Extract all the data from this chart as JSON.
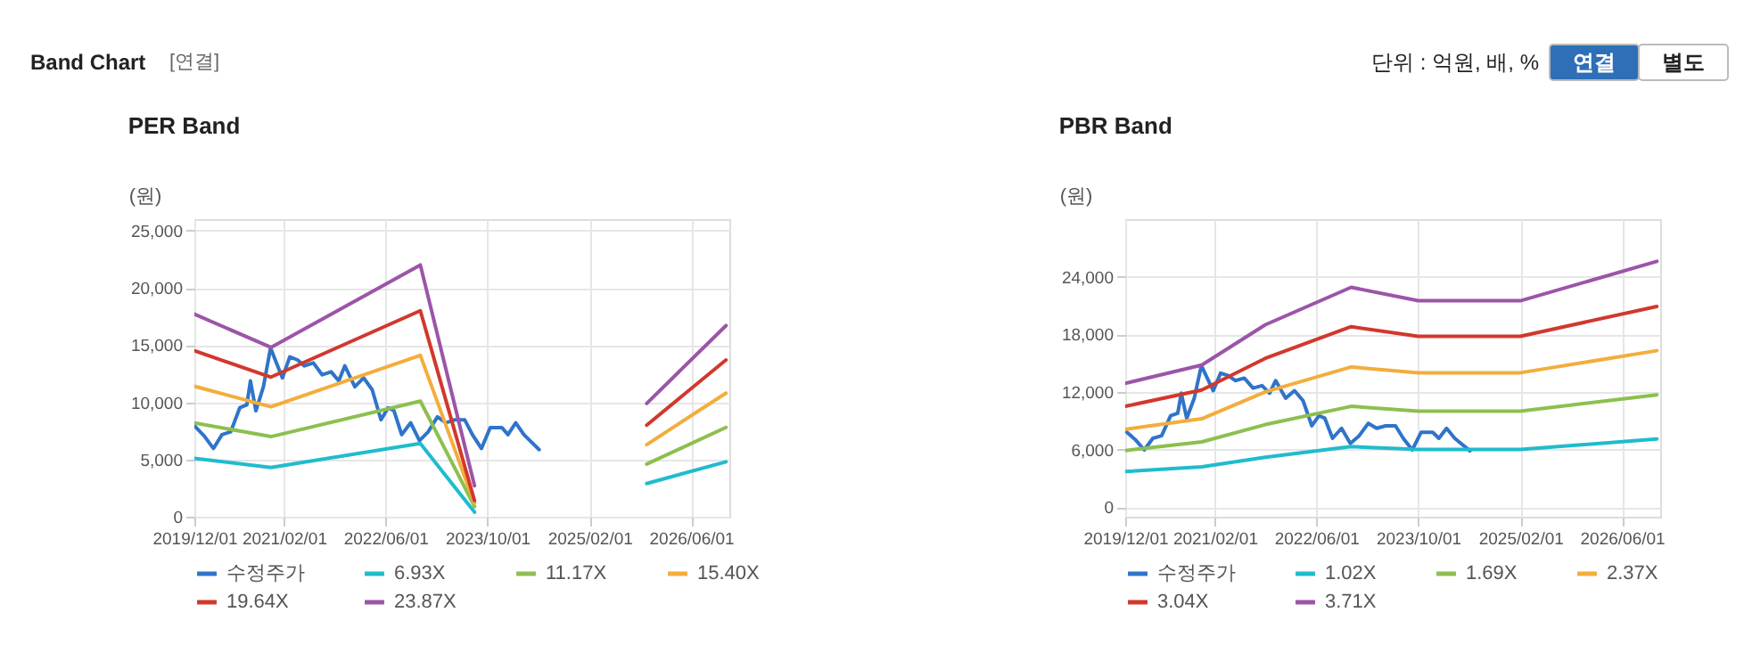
{
  "chart_data": [
    {
      "type": "line",
      "title": "PER Band",
      "ylabel": "(원)",
      "annotations": [
        "Band Chart",
        "[연결]",
        "단위 : 억원, 배, %",
        "연결",
        "별도"
      ],
      "xlim": [
        "2019-12-01",
        "2026-12-01"
      ],
      "xticks": [
        {
          "value": "2019-12-01",
          "label": "2019/12/01"
        },
        {
          "value": "2021-02-01",
          "label": "2021/02/01"
        },
        {
          "value": "2022-06-01",
          "label": "2022/06/01"
        },
        {
          "value": "2023-10-01",
          "label": "2023/10/01"
        },
        {
          "value": "2025-02-01",
          "label": "2025/02/01"
        },
        {
          "value": "2026-06-01",
          "label": "2026/06/01"
        }
      ],
      "ylim": [
        0,
        26000
      ],
      "yticks": [
        {
          "value": 0,
          "label": "0"
        },
        {
          "value": 5000,
          "label": "5,000"
        },
        {
          "value": 10000,
          "label": "10,000"
        },
        {
          "value": 15000,
          "label": "15,000"
        },
        {
          "value": 20000,
          "label": "20,000"
        },
        {
          "value": 25000,
          "label": "25,000"
        }
      ],
      "grid": true,
      "legend": "bottom",
      "series": [
        {
          "name": "수정주가",
          "color": "#2f74c9",
          "x": [
            "2019-12-01",
            "2020-01-17",
            "2020-03-01",
            "2020-04-11",
            "2020-05-23",
            "2020-07-05",
            "2020-08-08",
            "2020-08-25",
            "2020-09-20",
            "2020-10-26",
            "2020-11-29",
            "2020-12-27",
            "2021-01-25",
            "2021-03-01",
            "2021-04-07",
            "2021-05-10",
            "2021-06-22",
            "2021-08-03",
            "2021-09-15",
            "2021-10-21",
            "2021-11-19",
            "2022-01-06",
            "2022-02-17",
            "2022-03-30",
            "2022-05-11",
            "2022-06-14",
            "2022-07-12",
            "2022-08-18",
            "2022-09-30",
            "2022-11-11",
            "2022-12-23",
            "2023-02-05",
            "2023-03-17",
            "2023-04-29",
            "2023-06-15",
            "2023-07-22",
            "2023-09-03",
            "2023-10-15",
            "2023-12-10",
            "2024-01-08",
            "2024-02-14",
            "2024-03-24",
            "2024-06-05"
          ],
          "values": [
            7950,
            7060,
            5960,
            7170,
            7430,
            9520,
            9780,
            11870,
            9260,
            11350,
            14750,
            13440,
            12130,
            13960,
            13700,
            13180,
            13440,
            12400,
            12660,
            11870,
            13180,
            11350,
            12130,
            11090,
            8470,
            9520,
            9260,
            7170,
            8210,
            6640,
            7430,
            8730,
            8210,
            8470,
            8470,
            7170,
            5960,
            7790,
            7790,
            7170,
            8210,
            7170,
            5860
          ]
        },
        {
          "name": "6.93X",
          "color": "#1fbccc",
          "x": [
            "2019-12-01",
            "2020-12-01",
            "2022-11-15",
            "2023-08-01",
            "2024-09-01",
            "2025-11-01",
            "2026-11-15"
          ],
          "values": [
            5100,
            4300,
            6400,
            400,
            null,
            2900,
            4800
          ]
        },
        {
          "name": "11.17X",
          "color": "#8dbf4f",
          "x": [
            "2019-12-01",
            "2020-12-01",
            "2022-11-15",
            "2023-08-01",
            "2024-09-01",
            "2025-11-01",
            "2026-11-15"
          ],
          "values": [
            8200,
            7000,
            10100,
            900,
            null,
            4600,
            7800
          ]
        },
        {
          "name": "15.40X",
          "color": "#f3ad3c",
          "x": [
            "2019-12-01",
            "2020-12-01",
            "2022-11-15",
            "2023-08-01",
            "2024-09-01",
            "2025-11-01",
            "2026-11-15"
          ],
          "values": [
            11400,
            9600,
            14100,
            1150,
            null,
            6300,
            10800
          ]
        },
        {
          "name": "19.64X",
          "color": "#d2382d",
          "x": [
            "2019-12-01",
            "2020-12-01",
            "2022-11-15",
            "2023-08-01",
            "2024-09-01",
            "2025-11-01",
            "2026-11-15"
          ],
          "values": [
            14500,
            12200,
            18000,
            1400,
            null,
            8000,
            13700
          ]
        },
        {
          "name": "23.87X",
          "color": "#9b55a8",
          "x": [
            "2019-12-01",
            "2020-12-01",
            "2022-11-15",
            "2023-08-01",
            "2024-09-01",
            "2025-11-01",
            "2026-11-15"
          ],
          "values": [
            17700,
            14800,
            22000,
            2700,
            null,
            9900,
            16700
          ]
        }
      ]
    },
    {
      "type": "line",
      "title": "PBR Band",
      "ylabel": "(원)",
      "xlim": [
        "2019-12-01",
        "2026-12-01"
      ],
      "xticks": [
        {
          "value": "2019-12-01",
          "label": "2019/12/01"
        },
        {
          "value": "2021-02-01",
          "label": "2021/02/01"
        },
        {
          "value": "2022-06-01",
          "label": "2022/06/01"
        },
        {
          "value": "2023-10-01",
          "label": "2023/10/01"
        },
        {
          "value": "2025-02-01",
          "label": "2025/02/01"
        },
        {
          "value": "2026-06-01",
          "label": "2026/06/01"
        }
      ],
      "ylim": [
        -1000,
        30000
      ],
      "yticks": [
        {
          "value": 0,
          "label": "0"
        },
        {
          "value": 6000,
          "label": "6,000"
        },
        {
          "value": 12000,
          "label": "12,000"
        },
        {
          "value": 18000,
          "label": "18,000"
        },
        {
          "value": 24000,
          "label": "24,000"
        }
      ],
      "grid": true,
      "legend": "bottom",
      "series": [
        {
          "name": "수정주가",
          "color": "#2f74c9",
          "x": [
            "2019-12-01",
            "2020-01-17",
            "2020-03-01",
            "2020-04-11",
            "2020-05-23",
            "2020-07-05",
            "2020-08-08",
            "2020-08-25",
            "2020-09-20",
            "2020-10-26",
            "2020-11-29",
            "2020-12-27",
            "2021-01-25",
            "2021-03-01",
            "2021-04-07",
            "2021-05-10",
            "2021-06-22",
            "2021-08-03",
            "2021-09-15",
            "2021-10-21",
            "2021-11-19",
            "2022-01-06",
            "2022-02-17",
            "2022-03-30",
            "2022-05-11",
            "2022-06-14",
            "2022-07-12",
            "2022-08-18",
            "2022-09-30",
            "2022-11-11",
            "2022-12-23",
            "2023-02-05",
            "2023-03-17",
            "2023-04-29",
            "2023-06-15",
            "2023-07-22",
            "2023-09-03",
            "2023-10-15",
            "2023-12-10",
            "2024-01-08",
            "2024-02-14",
            "2024-03-24",
            "2024-06-05"
          ],
          "values": [
            7950,
            7060,
            5960,
            7170,
            7430,
            9520,
            9780,
            11870,
            9260,
            11350,
            14750,
            13440,
            12130,
            13960,
            13700,
            13180,
            13440,
            12400,
            12660,
            11870,
            13180,
            11350,
            12130,
            11090,
            8470,
            9520,
            9260,
            7170,
            8210,
            6640,
            7430,
            8730,
            8210,
            8470,
            8470,
            7170,
            5960,
            7790,
            7790,
            7170,
            8210,
            7170,
            5860
          ]
        },
        {
          "name": "1.02X",
          "color": "#1fbccc",
          "x": [
            "2019-12-01",
            "2020-12-01",
            "2021-10-01",
            "2022-11-15",
            "2023-10-01",
            "2025-02-01",
            "2026-11-15"
          ],
          "values": [
            3700,
            4200,
            5200,
            6300,
            6000,
            6000,
            7100
          ]
        },
        {
          "name": "1.69X",
          "color": "#8dbf4f",
          "x": [
            "2019-12-01",
            "2020-12-01",
            "2021-10-01",
            "2022-11-15",
            "2023-10-01",
            "2025-02-01",
            "2026-11-15"
          ],
          "values": [
            5900,
            6800,
            8600,
            10500,
            10000,
            10000,
            11700
          ]
        },
        {
          "name": "2.37X",
          "color": "#f3ad3c",
          "x": [
            "2019-12-01",
            "2020-12-01",
            "2021-10-01",
            "2022-11-15",
            "2023-10-01",
            "2025-02-01",
            "2026-11-15"
          ],
          "values": [
            8100,
            9200,
            12000,
            14600,
            14000,
            14000,
            16300
          ]
        },
        {
          "name": "3.04X",
          "color": "#d2382d",
          "x": [
            "2019-12-01",
            "2020-12-01",
            "2021-10-01",
            "2022-11-15",
            "2023-10-01",
            "2025-02-01",
            "2026-11-15"
          ],
          "values": [
            10500,
            12200,
            15500,
            18800,
            17800,
            17800,
            20900
          ]
        },
        {
          "name": "3.71X",
          "color": "#9b55a8",
          "x": [
            "2019-12-01",
            "2020-12-01",
            "2021-10-01",
            "2022-11-15",
            "2023-10-01",
            "2025-02-01",
            "2026-11-15"
          ],
          "values": [
            12900,
            14800,
            19000,
            22900,
            21500,
            21500,
            25600
          ]
        }
      ]
    }
  ]
}
